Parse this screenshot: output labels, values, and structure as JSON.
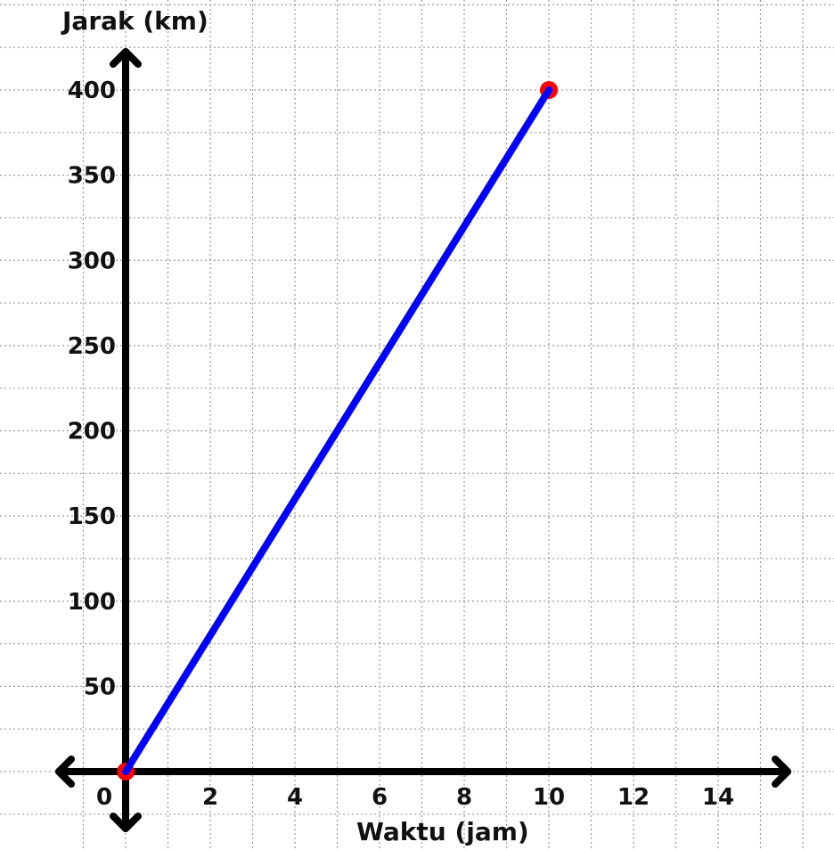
{
  "chart_data": {
    "type": "line",
    "xlabel": "Waktu (jam)",
    "ylabel": "Jarak (km)",
    "x_ticks": [
      0,
      2,
      4,
      6,
      8,
      10,
      12,
      14
    ],
    "y_ticks": [
      50,
      100,
      150,
      200,
      250,
      300,
      350,
      400
    ],
    "xlim": [
      -1,
      15.5
    ],
    "ylim": [
      -7,
      415
    ],
    "grid": true,
    "series": [
      {
        "x": [
          0,
          10
        ],
        "y": [
          0,
          400
        ],
        "color": "#0000ff"
      }
    ],
    "points": [
      {
        "x": 0,
        "y": 0,
        "color": "#ff0000"
      },
      {
        "x": 10,
        "y": 400,
        "color": "#ff0000"
      }
    ],
    "axis_color": "#000000",
    "grid_color": "#9a9a9a"
  }
}
